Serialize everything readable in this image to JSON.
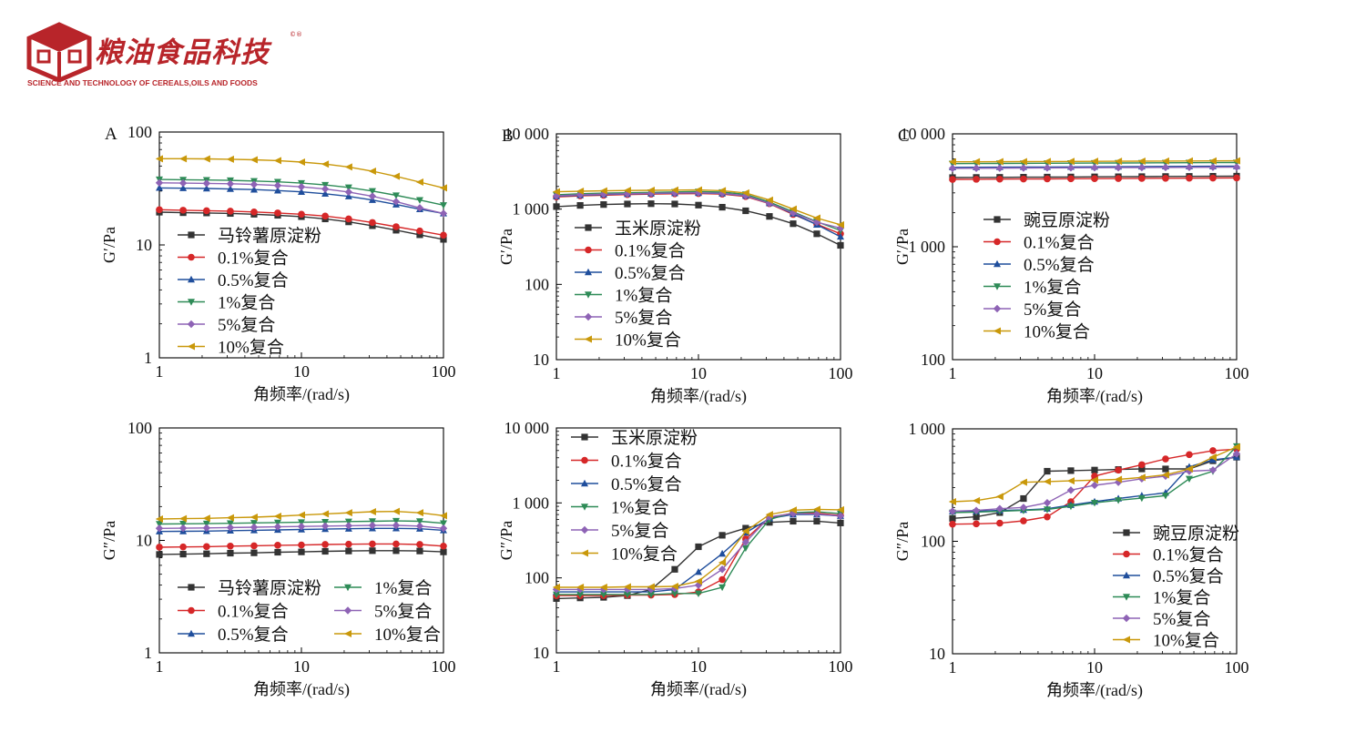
{
  "header": {
    "brand_name": "粮油食品科技",
    "trademark": "©®",
    "subtitle": "SCIENCE AND TECHNOLOGY OF CEREALS,OILS AND FOODS",
    "brand_color": "#b8252a"
  },
  "series_colors": [
    "#333333",
    "#d62728",
    "#1f4e9c",
    "#2e8b57",
    "#8e63b5",
    "#c9980a"
  ],
  "series_markers": [
    "square",
    "circle",
    "triangle-up",
    "triangle-down",
    "diamond",
    "triangle-left"
  ],
  "chart_data": [
    {
      "id": "A-storage",
      "type": "line",
      "panel_label": "A",
      "xlabel": "角频率/(rad/s)",
      "ylabel": "G′/Pa",
      "xscale": "log",
      "yscale": "log",
      "xlim": [
        1,
        100
      ],
      "ylim": [
        1,
        100
      ],
      "xticks": [
        {
          "v": 1,
          "l": "1"
        },
        {
          "v": 10,
          "l": "10"
        },
        {
          "v": 100,
          "l": "100"
        }
      ],
      "yticks": [
        {
          "v": 1,
          "l": "1"
        },
        {
          "v": 10,
          "l": "10"
        },
        {
          "v": 100,
          "l": "100"
        }
      ],
      "legend_position": "center-left",
      "legend_columns": 1,
      "x": [
        1,
        1.47,
        2.15,
        3.16,
        4.64,
        6.81,
        10,
        14.7,
        21.5,
        31.6,
        46.4,
        68.1,
        100
      ],
      "series": [
        {
          "name": "马铃薯原淀粉",
          "values": [
            19.5,
            19.3,
            19.2,
            19.0,
            18.7,
            18.3,
            17.8,
            17.0,
            16.0,
            14.8,
            13.5,
            12.3,
            11.2
          ]
        },
        {
          "name": "0.1%复合",
          "values": [
            20.5,
            20.3,
            20.1,
            19.9,
            19.6,
            19.2,
            18.7,
            18.0,
            17.0,
            15.8,
            14.5,
            13.3,
            12.2
          ]
        },
        {
          "name": "0.5%复合",
          "values": [
            32.0,
            31.8,
            31.6,
            31.3,
            30.9,
            30.3,
            29.5,
            28.4,
            26.9,
            25.0,
            22.8,
            20.7,
            19.0
          ]
        },
        {
          "name": "1%复合",
          "values": [
            38.0,
            37.8,
            37.6,
            37.3,
            36.8,
            36.2,
            35.3,
            34.0,
            32.3,
            30.0,
            27.5,
            25.0,
            22.5
          ]
        },
        {
          "name": "5%复合",
          "values": [
            35.5,
            35.3,
            35.1,
            34.8,
            34.3,
            33.6,
            32.7,
            31.3,
            29.4,
            27.0,
            24.2,
            21.3,
            19.0
          ]
        },
        {
          "name": "10%复合",
          "values": [
            58.0,
            58.0,
            57.8,
            57.4,
            56.8,
            55.8,
            54.2,
            52.0,
            49.0,
            45.0,
            40.5,
            36.0,
            32.0
          ]
        }
      ]
    },
    {
      "id": "B-storage",
      "type": "line",
      "panel_label": "B",
      "xlabel": "角频率/(rad/s)",
      "ylabel": "G′/Pa",
      "xscale": "log",
      "yscale": "log",
      "xlim": [
        1,
        100
      ],
      "ylim": [
        10,
        10000
      ],
      "xticks": [
        {
          "v": 1,
          "l": "1"
        },
        {
          "v": 10,
          "l": "10"
        },
        {
          "v": 100,
          "l": "100"
        }
      ],
      "yticks": [
        {
          "v": 10,
          "l": "10"
        },
        {
          "v": 100,
          "l": "100"
        },
        {
          "v": 1000,
          "l": "1 000"
        },
        {
          "v": 10000,
          "l": "10 000"
        }
      ],
      "legend_position": "center-left",
      "legend_columns": 1,
      "x": [
        1,
        1.47,
        2.15,
        3.16,
        4.64,
        6.81,
        10,
        14.7,
        21.5,
        31.6,
        46.4,
        68.1,
        100
      ],
      "series": [
        {
          "name": "玉米原淀粉",
          "values": [
            1080,
            1120,
            1150,
            1170,
            1180,
            1170,
            1130,
            1060,
            950,
            800,
            640,
            470,
            330
          ]
        },
        {
          "name": "0.1%复合",
          "values": [
            1450,
            1500,
            1530,
            1560,
            1580,
            1600,
            1610,
            1580,
            1470,
            1180,
            850,
            630,
            470
          ]
        },
        {
          "name": "0.5%复合",
          "values": [
            1480,
            1530,
            1560,
            1590,
            1610,
            1630,
            1640,
            1610,
            1500,
            1200,
            870,
            620,
            430
          ]
        },
        {
          "name": "1%复合",
          "values": [
            1550,
            1600,
            1630,
            1650,
            1670,
            1690,
            1710,
            1680,
            1570,
            1240,
            920,
            680,
            520
          ]
        },
        {
          "name": "5%复合",
          "values": [
            1500,
            1550,
            1580,
            1600,
            1620,
            1640,
            1650,
            1620,
            1510,
            1190,
            890,
            670,
            560
          ]
        },
        {
          "name": "10%复合",
          "values": [
            1700,
            1730,
            1750,
            1770,
            1780,
            1790,
            1800,
            1760,
            1640,
            1320,
            1000,
            760,
            620
          ]
        }
      ]
    },
    {
      "id": "C-storage",
      "type": "line",
      "panel_label": "C",
      "xlabel": "角频率/(rad/s)",
      "ylabel": "G′/Pa",
      "xscale": "log",
      "yscale": "log",
      "xlim": [
        1,
        100
      ],
      "ylim": [
        100,
        10000
      ],
      "xticks": [
        {
          "v": 1,
          "l": "1"
        },
        {
          "v": 10,
          "l": "10"
        },
        {
          "v": 100,
          "l": "100"
        }
      ],
      "yticks": [
        {
          "v": 100,
          "l": "100"
        },
        {
          "v": 1000,
          "l": "1 000"
        },
        {
          "v": 10000,
          "l": "10 000"
        }
      ],
      "legend_position": "center-left",
      "legend_columns": 1,
      "x": [
        1,
        1.47,
        2.15,
        3.16,
        4.64,
        6.81,
        10,
        14.7,
        21.5,
        31.6,
        46.4,
        68.1,
        100
      ],
      "series": [
        {
          "name": "豌豆原淀粉",
          "values": [
            4100,
            4110,
            4120,
            4130,
            4140,
            4150,
            4160,
            4170,
            4180,
            4190,
            4200,
            4210,
            4220
          ]
        },
        {
          "name": "0.1%复合",
          "values": [
            3950,
            3960,
            3970,
            3980,
            3990,
            4000,
            4010,
            4020,
            4030,
            4040,
            4050,
            4060,
            4070
          ]
        },
        {
          "name": "0.5%复合",
          "values": [
            5050,
            5060,
            5070,
            5080,
            5090,
            5100,
            5110,
            5120,
            5130,
            5140,
            5150,
            5160,
            5170
          ]
        },
        {
          "name": "1%复合",
          "values": [
            5450,
            5460,
            5470,
            5480,
            5490,
            5500,
            5510,
            5520,
            5530,
            5540,
            5550,
            5560,
            5570
          ]
        },
        {
          "name": "5%复合",
          "values": [
            4950,
            4960,
            4970,
            4980,
            4990,
            5000,
            5010,
            5020,
            5030,
            5040,
            5050,
            5060,
            5070
          ]
        },
        {
          "name": "10%复合",
          "values": [
            5650,
            5660,
            5670,
            5680,
            5690,
            5700,
            5710,
            5720,
            5730,
            5740,
            5750,
            5760,
            5770
          ]
        }
      ]
    },
    {
      "id": "A-loss",
      "type": "line",
      "panel_label": "",
      "xlabel": "角频率/(rad/s)",
      "ylabel": "G″/Pa",
      "xscale": "log",
      "yscale": "log",
      "xlim": [
        1,
        100
      ],
      "ylim": [
        1,
        100
      ],
      "xticks": [
        {
          "v": 1,
          "l": "1"
        },
        {
          "v": 10,
          "l": "10"
        },
        {
          "v": 100,
          "l": "100"
        }
      ],
      "yticks": [
        {
          "v": 1,
          "l": "1"
        },
        {
          "v": 10,
          "l": "10"
        },
        {
          "v": 100,
          "l": "100"
        }
      ],
      "legend_position": "bottom",
      "legend_columns": 2,
      "x": [
        1,
        1.47,
        2.15,
        3.16,
        4.64,
        6.81,
        10,
        14.7,
        21.5,
        31.6,
        46.4,
        68.1,
        100
      ],
      "series": [
        {
          "name": "马铃薯原淀粉",
          "values": [
            7.5,
            7.55,
            7.6,
            7.7,
            7.75,
            7.85,
            7.9,
            8.0,
            8.05,
            8.1,
            8.1,
            8.05,
            7.9
          ]
        },
        {
          "name": "0.1%复合",
          "values": [
            8.7,
            8.75,
            8.8,
            8.9,
            8.95,
            9.05,
            9.1,
            9.2,
            9.25,
            9.3,
            9.3,
            9.2,
            8.9
          ]
        },
        {
          "name": "0.5%复合",
          "values": [
            12.0,
            12.05,
            12.1,
            12.2,
            12.3,
            12.4,
            12.5,
            12.6,
            12.7,
            12.8,
            12.8,
            12.7,
            12.3
          ]
        },
        {
          "name": "1%复合",
          "values": [
            14.0,
            14.05,
            14.1,
            14.2,
            14.3,
            14.4,
            14.5,
            14.6,
            14.7,
            14.8,
            14.9,
            14.8,
            14.2
          ]
        },
        {
          "name": "5%复合",
          "values": [
            12.8,
            12.85,
            12.9,
            13.0,
            13.1,
            13.2,
            13.3,
            13.4,
            13.5,
            13.6,
            13.6,
            13.4,
            12.8
          ]
        },
        {
          "name": "10%复合",
          "values": [
            15.5,
            15.6,
            15.7,
            15.9,
            16.1,
            16.4,
            16.8,
            17.2,
            17.6,
            18.0,
            18.1,
            17.6,
            16.6
          ]
        }
      ]
    },
    {
      "id": "B-loss",
      "type": "line",
      "panel_label": "",
      "xlabel": "角频率/(rad/s)",
      "ylabel": "G″/Pa",
      "xscale": "log",
      "yscale": "log",
      "xlim": [
        1,
        100
      ],
      "ylim": [
        10,
        10000
      ],
      "xticks": [
        {
          "v": 1,
          "l": "1"
        },
        {
          "v": 10,
          "l": "10"
        },
        {
          "v": 100,
          "l": "100"
        }
      ],
      "yticks": [
        {
          "v": 10,
          "l": "10"
        },
        {
          "v": 100,
          "l": "100"
        },
        {
          "v": 1000,
          "l": "1 000"
        },
        {
          "v": 10000,
          "l": "10 000"
        }
      ],
      "legend_position": "top-left",
      "legend_columns": 1,
      "x": [
        1,
        1.47,
        2.15,
        3.16,
        4.64,
        6.81,
        10,
        14.7,
        21.5,
        31.6,
        46.4,
        68.1,
        100
      ],
      "series": [
        {
          "name": "玉米原淀粉",
          "values": [
            53,
            54,
            55,
            58,
            70,
            130,
            260,
            370,
            460,
            550,
            570,
            570,
            540
          ]
        },
        {
          "name": "0.1%复合",
          "values": [
            58,
            58,
            58,
            59,
            59,
            60,
            65,
            95,
            330,
            640,
            730,
            730,
            680
          ]
        },
        {
          "name": "0.5%复合",
          "values": [
            65,
            65,
            65,
            65,
            65,
            70,
            120,
            210,
            400,
            620,
            700,
            700,
            670
          ]
        },
        {
          "name": "1%复合",
          "values": [
            60,
            60,
            60,
            60,
            60,
            62,
            62,
            75,
            250,
            600,
            740,
            760,
            720
          ]
        },
        {
          "name": "5%复合",
          "values": [
            70,
            70,
            70,
            70,
            70,
            72,
            80,
            130,
            300,
            650,
            720,
            710,
            670
          ]
        },
        {
          "name": "10%复合",
          "values": [
            75,
            75,
            75,
            76,
            76,
            77,
            90,
            160,
            420,
            700,
            800,
            820,
            810
          ]
        }
      ]
    },
    {
      "id": "C-loss",
      "type": "line",
      "panel_label": "",
      "xlabel": "角频率/(rad/s)",
      "ylabel": "G″/Pa",
      "xscale": "log",
      "yscale": "log",
      "xlim": [
        1,
        100
      ],
      "ylim": [
        10,
        1000
      ],
      "xticks": [
        {
          "v": 1,
          "l": "1"
        },
        {
          "v": 10,
          "l": "10"
        },
        {
          "v": 100,
          "l": "100"
        }
      ],
      "yticks": [
        {
          "v": 10,
          "l": "10"
        },
        {
          "v": 100,
          "l": "100"
        },
        {
          "v": 1000,
          "l": "1 000"
        }
      ],
      "legend_position": "bottom-right",
      "legend_columns": 1,
      "x": [
        1,
        1.47,
        2.15,
        3.16,
        4.64,
        6.81,
        10,
        14.7,
        21.5,
        31.6,
        46.4,
        68.1,
        100
      ],
      "series": [
        {
          "name": "豌豆原淀粉",
          "values": [
            160,
            165,
            180,
            240,
            420,
            425,
            430,
            435,
            440,
            440,
            440,
            520,
            560
          ]
        },
        {
          "name": "0.1%复合",
          "values": [
            142,
            143,
            145,
            152,
            165,
            225,
            380,
            430,
            480,
            540,
            590,
            640,
            660
          ]
        },
        {
          "name": "0.5%复合",
          "values": [
            185,
            185,
            188,
            190,
            195,
            210,
            225,
            240,
            255,
            270,
            460,
            530,
            560
          ]
        },
        {
          "name": "1%复合",
          "values": [
            180,
            182,
            185,
            188,
            192,
            205,
            220,
            232,
            242,
            255,
            360,
            420,
            700
          ]
        },
        {
          "name": "5%复合",
          "values": [
            185,
            188,
            195,
            200,
            220,
            285,
            315,
            335,
            360,
            380,
            420,
            430,
            600
          ]
        },
        {
          "name": "10%复合",
          "values": [
            225,
            230,
            250,
            335,
            340,
            345,
            350,
            355,
            370,
            390,
            440,
            560,
            690
          ]
        }
      ]
    }
  ]
}
